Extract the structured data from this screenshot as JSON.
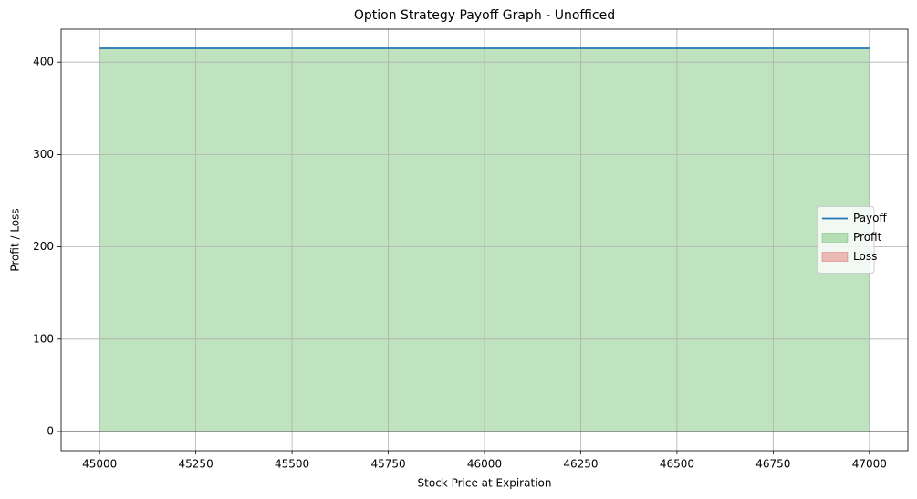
{
  "chart_data": {
    "type": "line",
    "title": "Option Strategy Payoff Graph - Unofficed",
    "x_label": "Stock Price at Expiration",
    "y_label": "Profit / Loss",
    "x": [
      45000,
      47000
    ],
    "series": [
      {
        "name": "Payoff",
        "color": "#1f77b4",
        "values": [
          415,
          415
        ]
      }
    ],
    "fills": [
      {
        "name": "Profit",
        "color": "#2ca02c",
        "where": "above"
      },
      {
        "name": "Loss",
        "color": "#d62728",
        "where": "below"
      }
    ],
    "xlim": [
      44900,
      47100
    ],
    "xticks": [
      45000,
      45250,
      45500,
      45750,
      46000,
      46250,
      46500,
      46750,
      47000
    ],
    "ylim": [
      -20.75,
      435.75
    ],
    "yticks": [
      0,
      100,
      200,
      300,
      400
    ],
    "hline": 0,
    "grid": true,
    "legend": "center right"
  }
}
